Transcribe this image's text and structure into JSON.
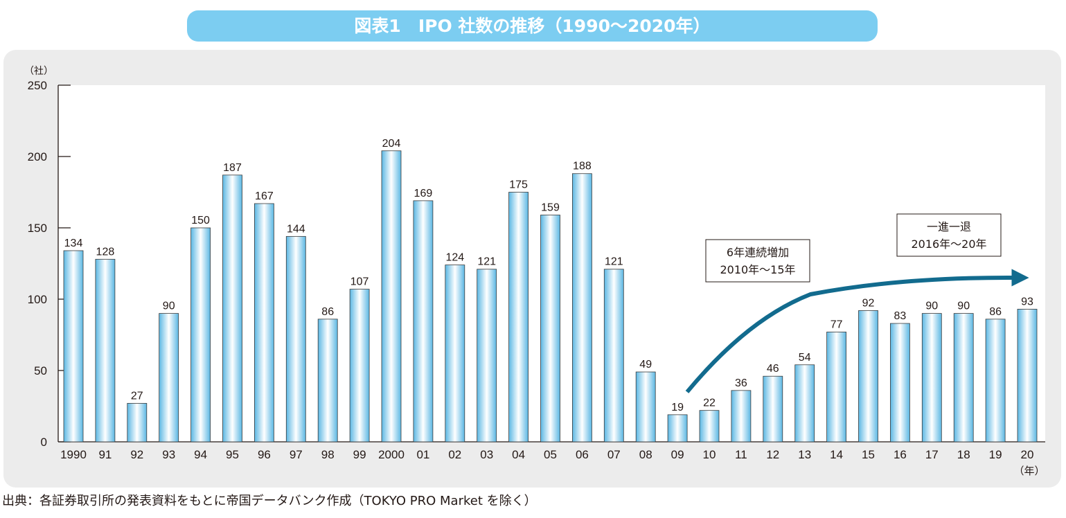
{
  "title": "図表1　IPO 社数の推移（1990～2020年）",
  "source": "出典：各証券取引所の発表資料をもとに帝国データバンク作成（TOKYO PRO Market を除く）",
  "colors": {
    "title_bg": "#7ccdf1",
    "bar_edge": "#5bb7e3",
    "bar_center": "#ffffff",
    "arrow": "#126b8e",
    "panel_bg": "#ececec"
  },
  "chart_data": {
    "type": "bar",
    "ylabel": "（社）",
    "xunit": "（年）",
    "ylim": [
      0,
      250
    ],
    "yticks": [
      0,
      50,
      100,
      150,
      200,
      250
    ],
    "grid": false,
    "categories": [
      "1990",
      "91",
      "92",
      "93",
      "94",
      "95",
      "96",
      "97",
      "98",
      "99",
      "2000",
      "01",
      "02",
      "03",
      "04",
      "05",
      "06",
      "07",
      "08",
      "09",
      "10",
      "11",
      "12",
      "13",
      "14",
      "15",
      "16",
      "17",
      "18",
      "19",
      "20"
    ],
    "values": [
      134,
      128,
      27,
      90,
      150,
      187,
      167,
      144,
      86,
      107,
      204,
      169,
      124,
      121,
      175,
      159,
      188,
      121,
      49,
      19,
      22,
      36,
      46,
      54,
      77,
      92,
      83,
      90,
      90,
      86,
      93
    ],
    "annotations": [
      {
        "lines": [
          "6年連続増加",
          "2010年～15年"
        ]
      },
      {
        "lines": [
          "一進一退",
          "2016年～20年"
        ]
      }
    ]
  }
}
